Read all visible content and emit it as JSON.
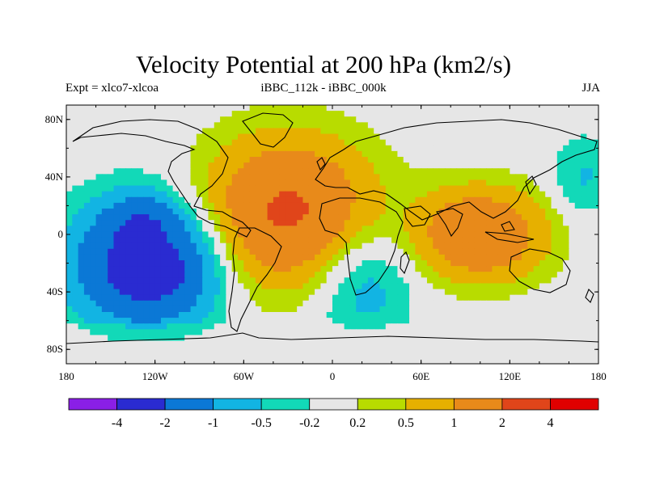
{
  "chart_data": {
    "type": "heatmap",
    "title": "Velocity Potential at 200 hPa (km2/s)",
    "left_subtitle": "Expt = xlco7-xlcoa",
    "center_subtitle": "iBBC_112k - iBBC_000k",
    "right_subtitle": "JJA",
    "x_range": [
      -180,
      180
    ],
    "y_range": [
      -90,
      90
    ],
    "x_ticks": [
      {
        "value": -180,
        "label": "180"
      },
      {
        "value": -120,
        "label": "120W"
      },
      {
        "value": -60,
        "label": "60W"
      },
      {
        "value": 0,
        "label": "0"
      },
      {
        "value": 60,
        "label": "60E"
      },
      {
        "value": 120,
        "label": "120E"
      },
      {
        "value": 180,
        "label": "180"
      }
    ],
    "y_ticks": [
      {
        "value": 80,
        "label": "80N"
      },
      {
        "value": 40,
        "label": "40N"
      },
      {
        "value": 0,
        "label": "0"
      },
      {
        "value": -40,
        "label": "40S"
      },
      {
        "value": -80,
        "label": "80S"
      }
    ],
    "levels": [
      -4,
      -2,
      -1,
      -0.5,
      -0.2,
      0.2,
      0.5,
      1,
      2,
      4
    ],
    "level_labels": [
      "-4",
      "-2",
      "-1",
      "-0.5",
      "-0.2",
      "0.2",
      "0.5",
      "1",
      "2",
      "4"
    ],
    "colors": [
      "#8a1fe6",
      "#2a2bd1",
      "#0b78d6",
      "#12b4e3",
      "#12d9b8",
      "#e6e6e6",
      "#b8dc00",
      "#e6b000",
      "#e88a1a",
      "#e0451a",
      "#e00000"
    ],
    "centers": [
      {
        "lon": -125,
        "lat": -20,
        "a": -2.6,
        "slon": 34,
        "slat": 30
      },
      {
        "lon": -130,
        "lat": 8,
        "a": -0.8,
        "slon": 14,
        "slat": 12
      },
      {
        "lon": -125,
        "lat": -28,
        "a": -0.8,
        "slon": 18,
        "slat": 10
      },
      {
        "lon": -30,
        "lat": 15,
        "a": 2.2,
        "slon": 40,
        "slat": 35
      },
      {
        "lon": 100,
        "lat": 0,
        "a": 1.9,
        "slon": 30,
        "slat": 22
      },
      {
        "lon": 20,
        "lat": -30,
        "a": -0.9,
        "slon": 25,
        "slat": 30
      },
      {
        "lon": 170,
        "lat": 40,
        "a": -0.55,
        "slon": 15,
        "slat": 20
      }
    ]
  }
}
